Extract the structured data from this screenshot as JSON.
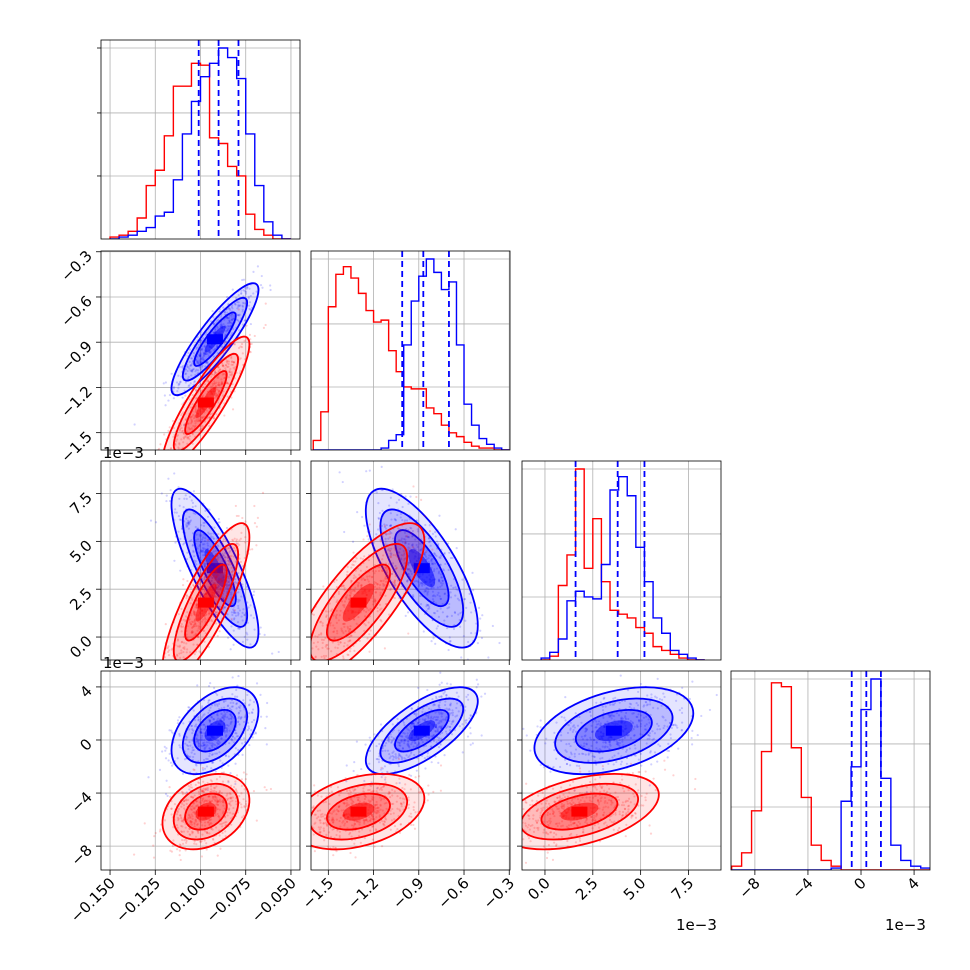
{
  "chart_data": {
    "type": "corner",
    "parameters": 4,
    "axis_labels": [
      "",
      "",
      "",
      ""
    ],
    "series": [
      {
        "name": "",
        "color": "#0000ff",
        "role": "blue posterior"
      },
      {
        "name": "",
        "color": "#ff0000",
        "role": "red posterior"
      }
    ],
    "quantile_lines": {
      "color": "#0000ff",
      "style": "dashed",
      "p0": [
        -0.101,
        -0.09,
        -0.079
      ],
      "p1": [
        -1.01,
        -0.87,
        -0.7
      ],
      "p2": [
        1.6,
        3.8,
        5.2
      ],
      "p3": [
        -0.7,
        0.4,
        1.5
      ]
    },
    "ranges": {
      "p0": [
        -0.155,
        -0.045
      ],
      "p1": [
        -1.615,
        -0.295
      ],
      "p2": [
        -1.2,
        9.2
      ],
      "p3": [
        -9.8,
        5.2
      ]
    },
    "tick_labels": {
      "p0": [
        "−0.150",
        "−0.125",
        "−0.100",
        "−0.075",
        "−0.050"
      ],
      "p1": [
        "−1.5",
        "−1.2",
        "−0.9",
        "−0.6",
        "−0.3"
      ],
      "p2": [
        "0.0",
        "2.5",
        "5.0",
        "7.5"
      ],
      "p3": [
        "−8",
        "−4",
        "0",
        "4"
      ]
    },
    "tick_values": {
      "p0": [
        -0.15,
        -0.125,
        -0.1,
        -0.075,
        -0.05
      ],
      "p1": [
        -1.5,
        -1.2,
        -0.9,
        -0.6,
        -0.3
      ],
      "p2": [
        0.0,
        2.5,
        5.0,
        7.5
      ],
      "p3": [
        -8,
        -4,
        0,
        4
      ]
    },
    "offset_text": "1e−3",
    "marginals": {
      "p0": {
        "edges": [
          -0.15,
          -0.145,
          -0.14,
          -0.135,
          -0.13,
          -0.125,
          -0.12,
          -0.115,
          -0.11,
          -0.105,
          -0.1,
          -0.095,
          -0.09,
          -0.085,
          -0.08,
          -0.075,
          -0.07,
          -0.065,
          -0.06,
          -0.055,
          -0.05
        ],
        "blue": [
          0,
          0.01,
          0.02,
          0.04,
          0.06,
          0.12,
          0.14,
          0.31,
          0.55,
          0.72,
          0.85,
          0.92,
          1.0,
          0.95,
          0.84,
          0.55,
          0.28,
          0.09,
          0.02,
          0
        ],
        "red": [
          0.01,
          0.02,
          0.04,
          0.11,
          0.28,
          0.36,
          0.54,
          0.8,
          0.8,
          0.92,
          0.91,
          0.53,
          0.5,
          0.38,
          0.33,
          0.13,
          0.05,
          0.02,
          0,
          0
        ]
      },
      "p1": {
        "edges": [
          -1.6,
          -1.55,
          -1.5,
          -1.45,
          -1.4,
          -1.35,
          -1.3,
          -1.25,
          -1.2,
          -1.15,
          -1.1,
          -1.05,
          -1.0,
          -0.95,
          -0.9,
          -0.85,
          -0.8,
          -0.75,
          -0.7,
          -0.65,
          -0.6,
          -0.55,
          -0.5,
          -0.45,
          -0.4,
          -0.35,
          -0.3
        ],
        "blue": [
          0,
          0,
          0,
          0,
          0,
          0,
          0,
          0,
          0,
          0.01,
          0.05,
          0.08,
          0.55,
          0.78,
          0.91,
          1.0,
          0.93,
          0.84,
          0.88,
          0.55,
          0.24,
          0.13,
          0.06,
          0.03,
          0.01,
          0
        ],
        "red": [
          0.05,
          0.2,
          0.75,
          0.92,
          0.96,
          0.9,
          0.82,
          0.73,
          0.67,
          0.68,
          0.52,
          0.41,
          0.33,
          0.32,
          0.32,
          0.22,
          0.19,
          0.13,
          0.09,
          0.07,
          0.04,
          0.02,
          0.01,
          0.01,
          0,
          0
        ]
      },
      "p2": {
        "edges": [
          -0.2,
          0.25,
          0.7,
          1.15,
          1.6,
          2.05,
          2.5,
          2.95,
          3.4,
          3.85,
          4.3,
          4.75,
          5.2,
          5.65,
          6.1,
          6.55,
          7.0,
          7.45,
          7.9,
          8.35
        ],
        "blue": [
          0.01,
          0.04,
          0.11,
          0.31,
          0.36,
          0.33,
          0.32,
          0.5,
          0.89,
          0.96,
          0.86,
          0.59,
          0.41,
          0.22,
          0.14,
          0.05,
          0.03,
          0.01,
          0
        ],
        "red": [
          0,
          0.02,
          0.39,
          0.55,
          1.0,
          0.48,
          0.74,
          0.41,
          0.26,
          0.24,
          0.22,
          0.17,
          0.14,
          0.07,
          0.05,
          0.03,
          0.01,
          0,
          0
        ]
      },
      "p3": {
        "edges": [
          -9.75,
          -9.0,
          -8.25,
          -7.5,
          -6.75,
          -6.0,
          -5.25,
          -4.5,
          -3.75,
          -3.0,
          -2.25,
          -1.5,
          -0.75,
          0.0,
          0.75,
          1.5,
          2.25,
          3.0,
          3.75,
          4.5,
          5.25
        ],
        "blue": [
          0,
          0,
          0,
          0,
          0,
          0,
          0,
          0,
          0,
          0,
          0.01,
          0.36,
          0.54,
          0.84,
          1.0,
          0.48,
          0.13,
          0.05,
          0.02,
          0.01
        ],
        "red": [
          0.02,
          0.09,
          0.31,
          0.62,
          0.98,
          0.96,
          0.64,
          0.38,
          0.13,
          0.05,
          0.02,
          0,
          0,
          0,
          0,
          0,
          0,
          0,
          0,
          0
        ]
      }
    },
    "joint": {
      "blue": [
        -0.092,
        -0.88,
        3.6,
        0.7
      ],
      "red": [
        -0.097,
        -1.3,
        1.8,
        -5.4
      ],
      "blue_sd": [
        0.011,
        0.17,
        1.9,
        1.5
      ],
      "red_sd": [
        0.011,
        0.2,
        1.9,
        1.3
      ],
      "blue_corr": {
        "0-1": 0.88,
        "0-2": -0.8,
        "1-2": -0.72,
        "0-3": 0.45,
        "1-3": 0.68,
        "2-3": 0.4
      },
      "red_corr": {
        "0-1": 0.88,
        "0-2": 0.82,
        "1-2": 0.78,
        "0-3": 0.3,
        "1-3": 0.35,
        "2-3": 0.45
      }
    }
  }
}
